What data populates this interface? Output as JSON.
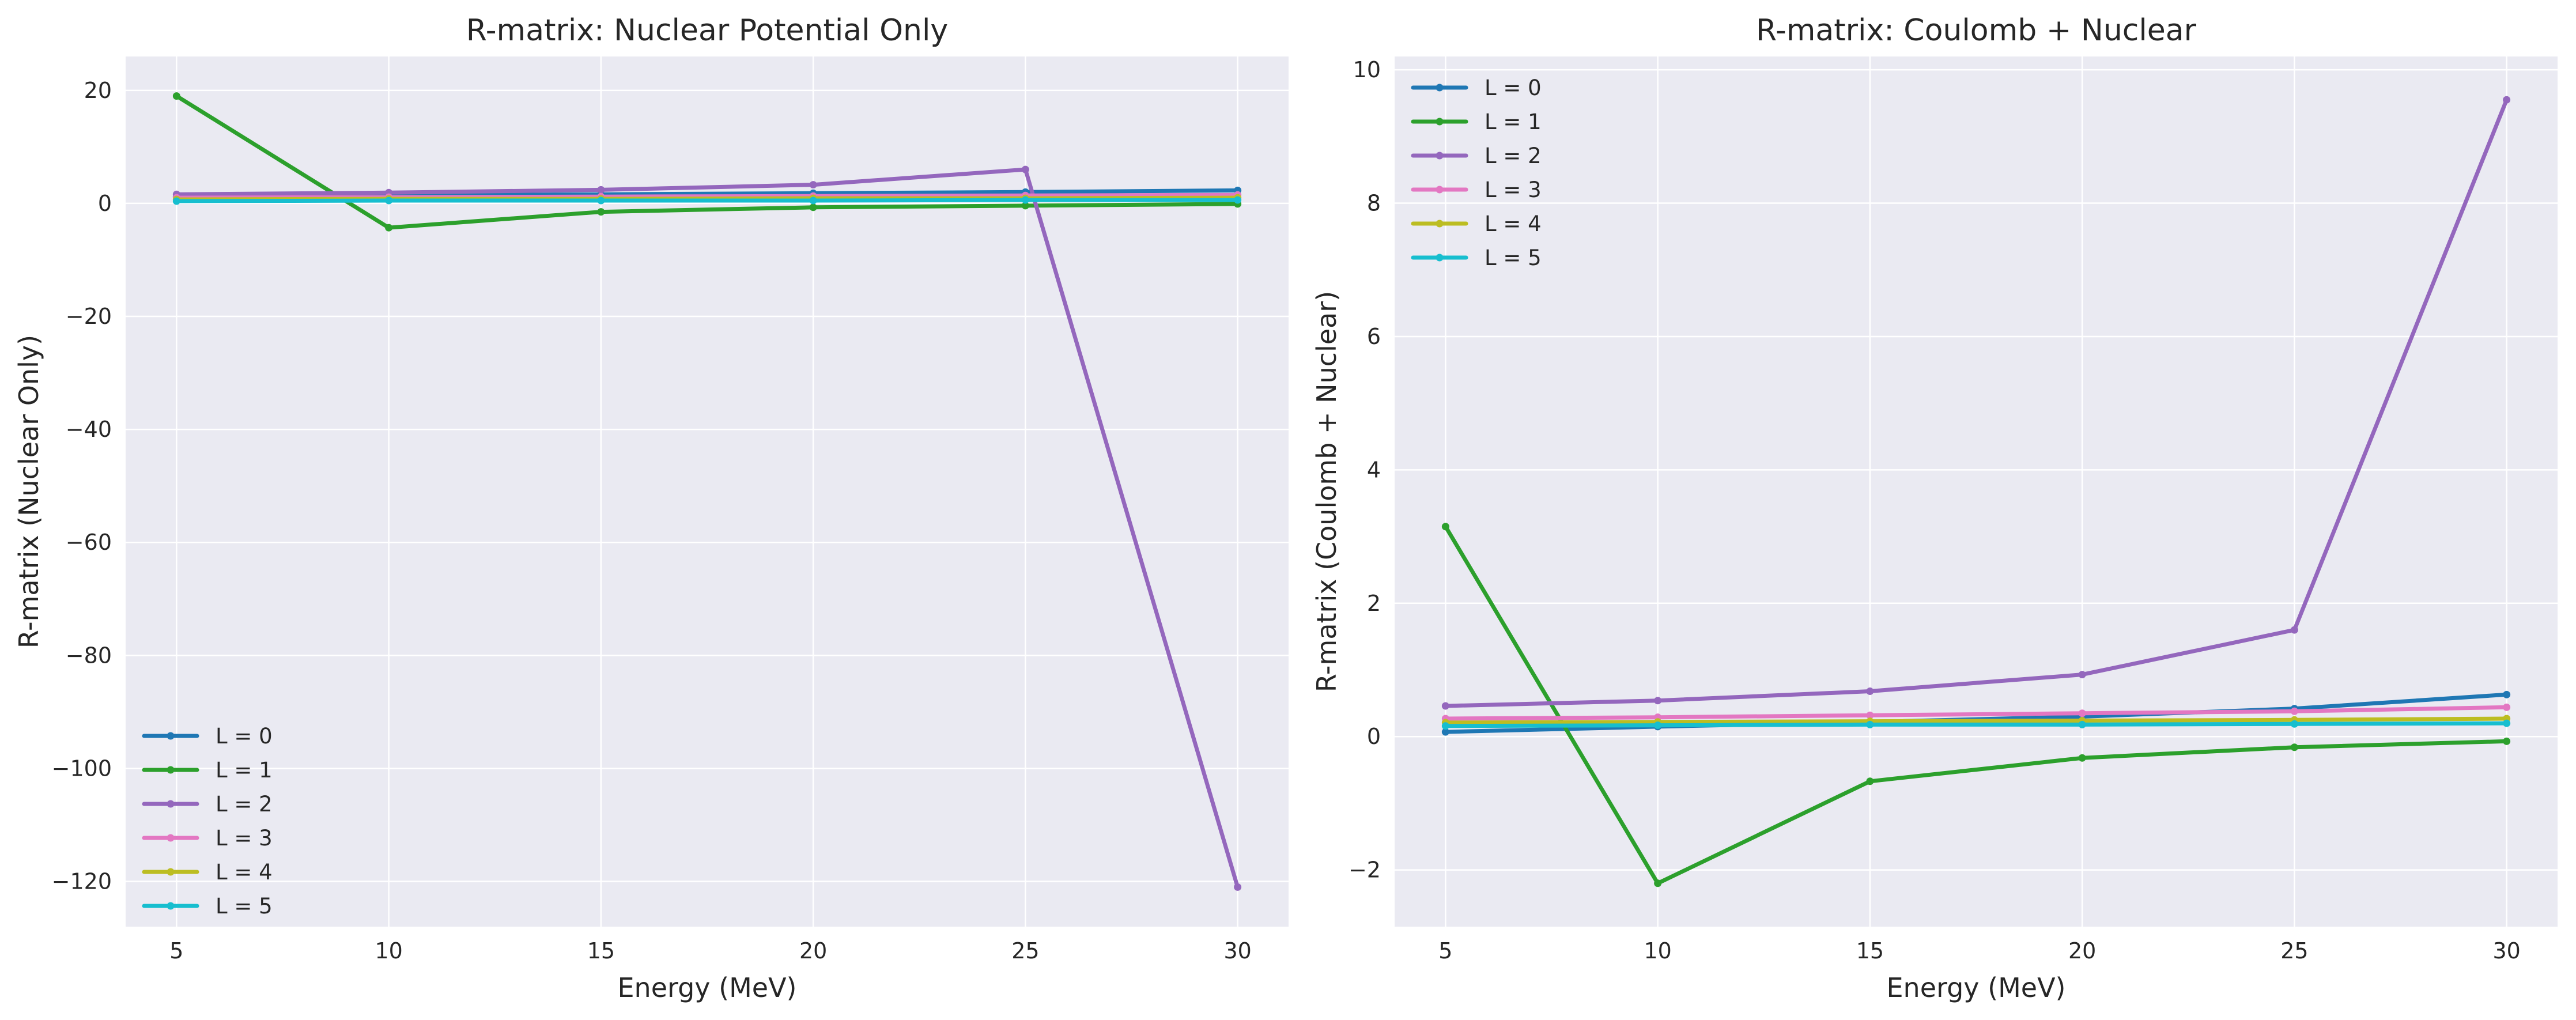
{
  "chart_data": [
    {
      "type": "line",
      "title": "R-matrix: Nuclear Potential Only",
      "xlabel": "Energy (MeV)",
      "ylabel": "R-matrix (Nuclear Only)",
      "x": [
        5,
        10,
        15,
        20,
        25,
        30
      ],
      "xticks": [
        5,
        10,
        15,
        20,
        25,
        30
      ],
      "yticks": [
        20,
        0,
        -20,
        -40,
        -60,
        -80,
        -100,
        -120
      ],
      "xlim": [
        3.8,
        31.2
      ],
      "ylim": [
        -128,
        26
      ],
      "grid": true,
      "legend_position": "lower-left",
      "series": [
        {
          "name": "L = 0",
          "color": "#1f77b4",
          "values": [
            1.2,
            1.4,
            1.6,
            1.8,
            2.0,
            2.3
          ]
        },
        {
          "name": "L = 1",
          "color": "#2ca02c",
          "values": [
            19.0,
            -4.3,
            -1.5,
            -0.7,
            -0.4,
            -0.1
          ]
        },
        {
          "name": "L = 2",
          "color": "#9467bd",
          "values": [
            1.6,
            1.9,
            2.4,
            3.3,
            6.0,
            -121.0
          ]
        },
        {
          "name": "L = 3",
          "color": "#e377c2",
          "values": [
            1.0,
            1.1,
            1.2,
            1.3,
            1.4,
            1.5
          ]
        },
        {
          "name": "L = 4",
          "color": "#bcbd22",
          "values": [
            0.7,
            0.8,
            0.8,
            0.9,
            0.9,
            1.0
          ]
        },
        {
          "name": "L = 5",
          "color": "#17becf",
          "values": [
            0.4,
            0.5,
            0.5,
            0.5,
            0.6,
            0.6
          ]
        }
      ]
    },
    {
      "type": "line",
      "title": "R-matrix: Coulomb + Nuclear",
      "xlabel": "Energy (MeV)",
      "ylabel": "R-matrix (Coulomb + Nuclear)",
      "x": [
        5,
        10,
        15,
        20,
        25,
        30
      ],
      "xticks": [
        5,
        10,
        15,
        20,
        25,
        30
      ],
      "yticks": [
        10,
        8,
        6,
        4,
        2,
        0,
        -2
      ],
      "xlim": [
        3.8,
        31.2
      ],
      "ylim": [
        -2.85,
        10.2
      ],
      "grid": true,
      "legend_position": "upper-left",
      "series": [
        {
          "name": "L = 0",
          "color": "#1f77b4",
          "values": [
            0.07,
            0.15,
            0.22,
            0.3,
            0.42,
            0.63
          ]
        },
        {
          "name": "L = 1",
          "color": "#2ca02c",
          "values": [
            3.15,
            -2.2,
            -0.67,
            -0.32,
            -0.16,
            -0.07
          ]
        },
        {
          "name": "L = 2",
          "color": "#9467bd",
          "values": [
            0.46,
            0.54,
            0.68,
            0.93,
            1.6,
            9.55
          ]
        },
        {
          "name": "L = 3",
          "color": "#e377c2",
          "values": [
            0.27,
            0.29,
            0.32,
            0.35,
            0.38,
            0.44
          ]
        },
        {
          "name": "L = 4",
          "color": "#bcbd22",
          "values": [
            0.21,
            0.22,
            0.23,
            0.24,
            0.25,
            0.27
          ]
        },
        {
          "name": "L = 5",
          "color": "#17becf",
          "values": [
            0.16,
            0.17,
            0.18,
            0.18,
            0.19,
            0.2
          ]
        }
      ]
    }
  ]
}
